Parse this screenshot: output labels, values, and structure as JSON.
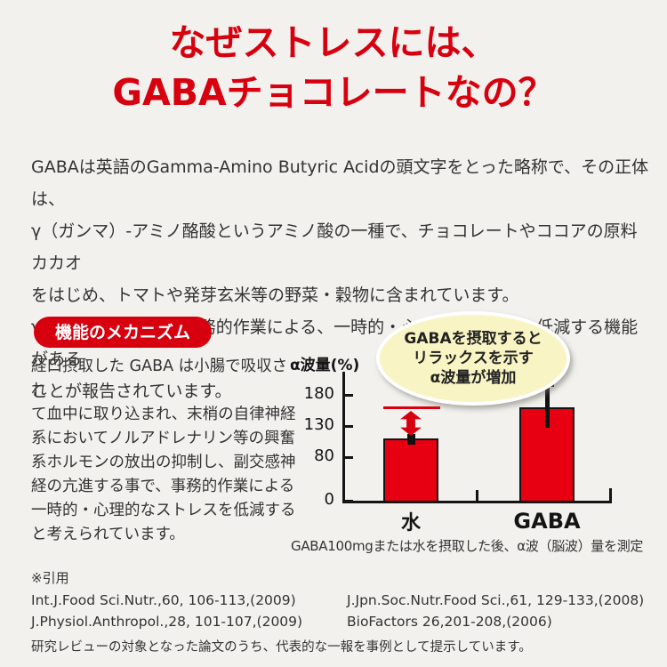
{
  "title": {
    "line1": "なぜストレスには、",
    "line2": "GABAチョコレートなの？"
  },
  "intro": {
    "lines": [
      "GABAは英語のGamma-Amino Butyric Acidの頭文字をとった略称で、その正体は、",
      "γ（ガンマ）-アミノ酪酸というアミノ酸の一種で、チョコレートやココアの原料カカオ",
      "をはじめ、トマトや発芽玄米等の野菜・穀物に含まれています。",
      "γ-アミノ酪酸には、事務的作業による、一時的・心理的なストレス低減する機能がある",
      "ことが報告されています。"
    ]
  },
  "mechanism": {
    "badge": "機能のメカニズム",
    "lines": [
      "経口摂取した GABA は小腸で吸収され",
      "て血中に取り込まれ、末梢の自律神経",
      "系においてノルアドレナリン等の興奮",
      "系ホルモンの放出の抑制し、副交感神",
      "経の亢進する事で、事務的作業による",
      "一時的・心理的なストレスを低減する",
      "と考えられています。"
    ],
    "bubble": {
      "line1": "GABAを摂取すると",
      "line2": "リラックスを示す",
      "line3": "α波量が増加"
    }
  },
  "chart_data": {
    "type": "bar",
    "ylabel": "α波量(%)",
    "categories": [
      "水",
      "GABA"
    ],
    "values": [
      110,
      160
    ],
    "error_bars": [
      [
        100,
        117
      ],
      [
        127,
        197
      ]
    ],
    "yticks": [
      0,
      80,
      130,
      180
    ],
    "reference_line": 160,
    "bar_color": "#e60012",
    "grid": false,
    "axis_note": "y-axis compressed below 80",
    "caption": "GABA100mgまたは水を摂取した後、α波（脳波）量を測定"
  },
  "citations": {
    "heading": "※引用",
    "items": [
      "Int.J.Food Sci.Nutr.,60, 106-113,(2009)",
      "J.Jpn.Soc.Nutr.Food Sci.,61, 129-133,(2008)",
      "J.Physiol.Anthropol.,28, 101-107,(2009)",
      "BioFactors 26,201-208,(2006)"
    ]
  },
  "footnote": "研究レビューの対象となった論文のうち、代表的な一報を事例として提示しています。",
  "colors": {
    "accent_red": "#d7000f",
    "bar_red": "#e60012",
    "bubble_fill": "#f9f4c3",
    "background": "#f2f1ee"
  }
}
